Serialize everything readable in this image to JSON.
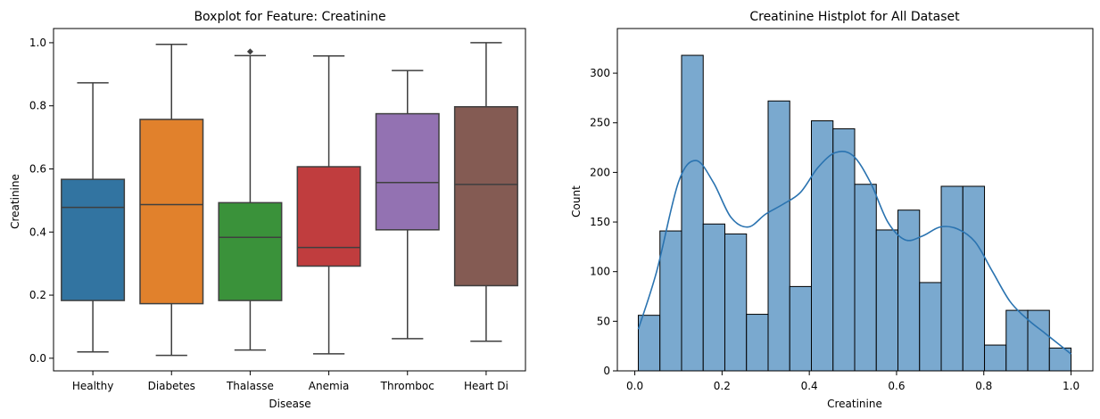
{
  "chart_data": [
    {
      "type": "box",
      "title": "Boxplot for Feature: Creatinine",
      "xlabel": "Disease",
      "ylabel": "Creatinine",
      "ylim": [
        -0.04,
        1.045
      ],
      "yticks": [
        0.0,
        0.2,
        0.4,
        0.6,
        0.8,
        1.0
      ],
      "ytick_labels": [
        "0.0",
        "0.2",
        "0.4",
        "0.6",
        "0.8",
        "1.0"
      ],
      "categories": [
        "Healthy",
        "Diabetes",
        "Thalasse",
        "Anemia",
        "Thromboc",
        "Heart Di"
      ],
      "boxes": [
        {
          "category": "Healthy",
          "whislo": 0.02,
          "q1": 0.183,
          "med": 0.478,
          "q3": 0.567,
          "whishi": 0.873,
          "fliers": [],
          "color": "#3274a1"
        },
        {
          "category": "Diabetes",
          "whislo": 0.009,
          "q1": 0.173,
          "med": 0.487,
          "q3": 0.757,
          "whishi": 0.995,
          "fliers": [],
          "color": "#e1812c"
        },
        {
          "category": "Thalasse",
          "whislo": 0.026,
          "q1": 0.183,
          "med": 0.383,
          "q3": 0.493,
          "whishi": 0.959,
          "fliers": [
            0.972
          ],
          "color": "#3a923a"
        },
        {
          "category": "Anemia",
          "whislo": 0.014,
          "q1": 0.292,
          "med": 0.351,
          "q3": 0.607,
          "whishi": 0.958,
          "fliers": [],
          "color": "#c03d3e"
        },
        {
          "category": "Thromboc",
          "whislo": 0.062,
          "q1": 0.407,
          "med": 0.557,
          "q3": 0.775,
          "whishi": 0.912,
          "fliers": [],
          "color": "#9372b2"
        },
        {
          "category": "Heart Di",
          "whislo": 0.054,
          "q1": 0.23,
          "med": 0.551,
          "q3": 0.797,
          "whishi": 1.0,
          "fliers": [],
          "color": "#845b53"
        }
      ]
    },
    {
      "type": "histogram",
      "title": "Creatinine Histplot for All Dataset",
      "xlabel": "Creatinine",
      "ylabel": "Count",
      "xlim": [
        -0.04,
        1.05
      ],
      "ylim": [
        0,
        345
      ],
      "xticks": [
        0.0,
        0.2,
        0.4,
        0.6,
        0.8,
        1.0
      ],
      "xtick_labels": [
        "0.0",
        "0.2",
        "0.4",
        "0.6",
        "0.8",
        "1.0"
      ],
      "yticks": [
        0,
        50,
        100,
        150,
        200,
        250,
        300
      ],
      "ytick_labels": [
        "0",
        "50",
        "100",
        "150",
        "200",
        "250",
        "300"
      ],
      "bin_start": 0.008,
      "bin_width": 0.0496,
      "counts": [
        56,
        141,
        318,
        148,
        138,
        57,
        272,
        85,
        252,
        244,
        188,
        142,
        162,
        89,
        186,
        186,
        26,
        61,
        61,
        23
      ],
      "kde": [
        [
          0.008,
          42
        ],
        [
          0.05,
          100
        ],
        [
          0.1,
          190
        ],
        [
          0.14,
          212
        ],
        [
          0.18,
          190
        ],
        [
          0.22,
          155
        ],
        [
          0.26,
          145
        ],
        [
          0.3,
          158
        ],
        [
          0.34,
          168
        ],
        [
          0.38,
          180
        ],
        [
          0.42,
          205
        ],
        [
          0.46,
          220
        ],
        [
          0.5,
          217
        ],
        [
          0.54,
          190
        ],
        [
          0.58,
          150
        ],
        [
          0.62,
          132
        ],
        [
          0.66,
          136
        ],
        [
          0.7,
          145
        ],
        [
          0.74,
          143
        ],
        [
          0.78,
          130
        ],
        [
          0.82,
          100
        ],
        [
          0.86,
          70
        ],
        [
          0.9,
          52
        ],
        [
          0.94,
          38
        ],
        [
          0.98,
          24
        ],
        [
          1.0,
          17
        ]
      ],
      "bar_color": "#7aa9cf",
      "kde_color": "#2a73b0"
    }
  ]
}
